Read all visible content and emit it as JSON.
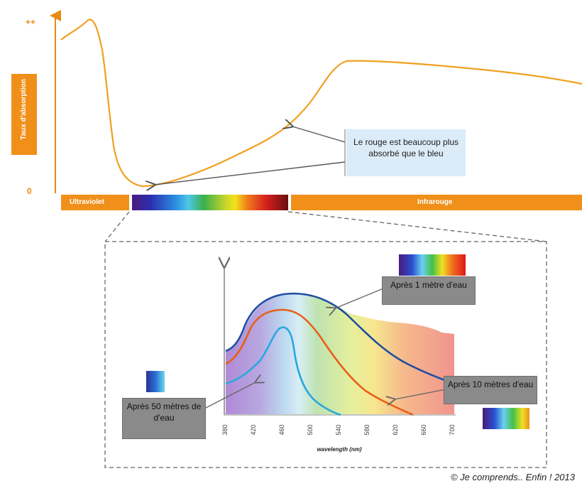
{
  "colors": {
    "orange": "#f0901a",
    "curve": "#f0a020",
    "curve_1m": "#1f4fa0",
    "curve_10m": "#e8601a",
    "curve_50m": "#29a8e0",
    "gray_box": "#8a8a8a",
    "light_box": "#dcebf8"
  },
  "top_chart": {
    "y_top_label": "++",
    "y_zero_label": "0",
    "y_axis_title": "Taux d'absorption",
    "ultraviolet_label": "Ultraviolet",
    "infrared_label": "Infrarouge",
    "callout_text": "Le rouge est beaucoup plus absorbé que le bleu"
  },
  "inset": {
    "callout_1m": "Après 1 mètre d'eau",
    "callout_10m": "Après 10 mètres d'eau",
    "callout_50m": "Après 50 mètres de d'eau",
    "x_axis_label": "wavelength (nm)",
    "ticks": [
      "380",
      "420",
      "460",
      "500",
      "540",
      "580",
      "620",
      "660",
      "700"
    ]
  },
  "copyright": "© Je comprends.. Enfin ! 2013"
}
